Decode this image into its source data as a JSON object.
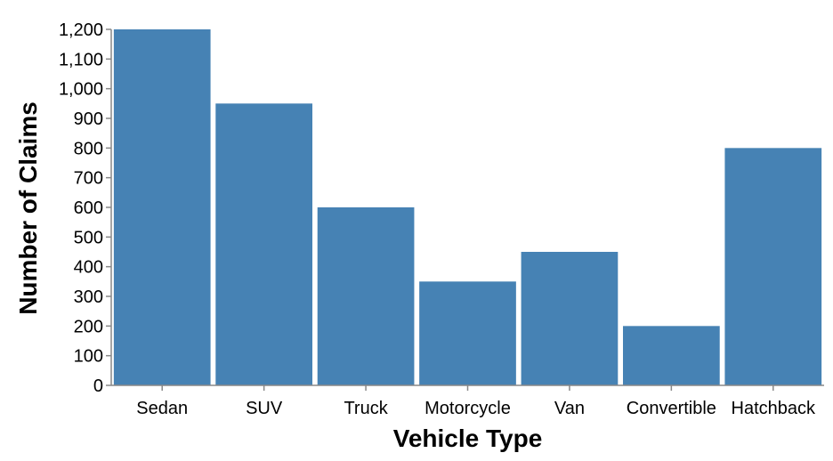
{
  "chart_data": {
    "type": "bar",
    "title": "",
    "xlabel": "Vehicle Type",
    "ylabel": "Number of Claims",
    "categories": [
      "Sedan",
      "SUV",
      "Truck",
      "Motorcycle",
      "Van",
      "Convertible",
      "Hatchback"
    ],
    "values": [
      1200,
      950,
      600,
      350,
      450,
      200,
      800
    ],
    "ylim": [
      0,
      1200
    ],
    "yticks": [
      0,
      100,
      200,
      300,
      400,
      500,
      600,
      700,
      800,
      900,
      1000,
      1100,
      1200
    ],
    "ytick_labels": [
      "0",
      "100",
      "200",
      "300",
      "400",
      "500",
      "600",
      "700",
      "800",
      "900",
      "1,000",
      "1,100",
      "1,200"
    ],
    "grid": false,
    "legend": "none",
    "bar_color": "#4682b4",
    "axis_color": "#888888"
  }
}
